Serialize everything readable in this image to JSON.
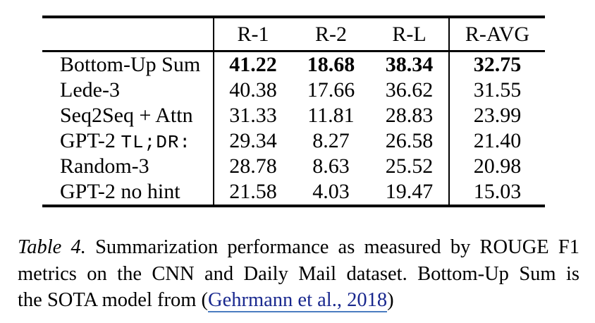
{
  "table": {
    "columns": {
      "model": "",
      "r1": "R-1",
      "r2": "R-2",
      "rl": "R-L",
      "ravg": "R-AVG"
    },
    "rows": [
      {
        "name": "Bottom-Up Sum",
        "name_mono": "",
        "r1": "41.22",
        "r2": "18.68",
        "rl": "38.34",
        "ravg": "32.75",
        "bold": true
      },
      {
        "name": "Lede-3",
        "name_mono": "",
        "r1": "40.38",
        "r2": "17.66",
        "rl": "36.62",
        "ravg": "31.55",
        "bold": false
      },
      {
        "name": "Seq2Seq + Attn",
        "name_mono": "",
        "r1": "31.33",
        "r2": "11.81",
        "rl": "28.83",
        "ravg": "23.99",
        "bold": false
      },
      {
        "name": "GPT-2 ",
        "name_mono": "TL;DR:",
        "r1": "29.34",
        "r2": "8.27",
        "rl": "26.58",
        "ravg": "21.40",
        "bold": false
      },
      {
        "name": "Random-3",
        "name_mono": "",
        "r1": "28.78",
        "r2": "8.63",
        "rl": "25.52",
        "ravg": "20.98",
        "bold": false
      },
      {
        "name": "GPT-2 no hint",
        "name_mono": "",
        "r1": "21.58",
        "r2": "4.03",
        "rl": "19.47",
        "ravg": "15.03",
        "bold": false
      }
    ]
  },
  "caption": {
    "label": "Table 4.",
    "line1_rest": "Summarization performance as measured by ROUGE F1",
    "line2": "metrics on the CNN and Daily Mail dataset. Bottom-Up Sum is",
    "line3_before": "the SOTA model from (",
    "link": "Gehrmann et al., 2018",
    "line3_after": ")"
  },
  "colors": {
    "background": "#ffffff",
    "text": "#000000",
    "rule": "#000000",
    "link_text": "#19288e",
    "link_underline": "#4b7cc0"
  }
}
